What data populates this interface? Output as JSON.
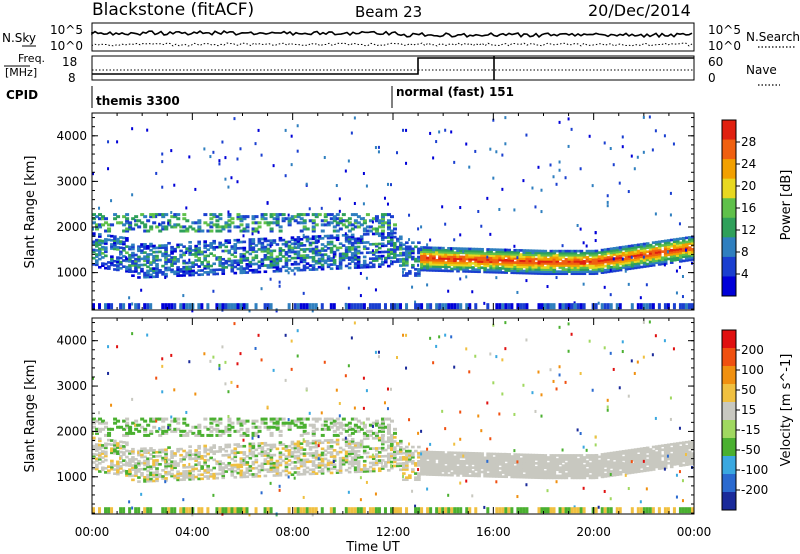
{
  "header": {
    "station": "Blackstone (fitACF)",
    "beam": "Beam 23",
    "date": "20/Dec/2014"
  },
  "strip": {
    "nsky_label": "N.Sky",
    "nsky_ticks": [
      "10^5",
      "10^0"
    ],
    "nsearch_label": "N.Search",
    "nsearch_ticks": [
      "10^5",
      "10^0"
    ],
    "freq_label": "Freq.",
    "freq_unit": "[MHz]",
    "freq_ticks": [
      "18",
      "8"
    ],
    "nave_label": "Nave",
    "nave_ticks": [
      "60",
      "0"
    ],
    "cpid_label": "CPID",
    "cpid_segments": [
      "themis 3300",
      "normal (fast) 151"
    ]
  },
  "chart_data": [
    {
      "type": "heatmap",
      "title": "",
      "xlabel": "Time UT",
      "ylabel": "Slant Range [km]",
      "xlim": [
        "00:00",
        "24:00"
      ],
      "ylim": [
        180,
        4500
      ],
      "x_ticks": [
        "00:00",
        "04:00",
        "08:00",
        "12:00",
        "16:00",
        "20:00",
        "00:00"
      ],
      "y_ticks": [
        1000,
        2000,
        3000,
        4000
      ],
      "colorbar": {
        "label": "Power [dB]",
        "ticks": [
          4,
          8,
          12,
          16,
          20,
          24,
          28
        ],
        "colors": [
          "#0000d8",
          "#1a3fd0",
          "#2f7fbf",
          "#2fa05a",
          "#5fc04a",
          "#e8d820",
          "#f2a000",
          "#f06010",
          "#e02010"
        ]
      },
      "features": [
        {
          "time_h": [
            0.0,
            12.5
          ],
          "range_km": [
            1100,
            2300
          ],
          "power_db": [
            4,
            20
          ],
          "note": "scattered band"
        },
        {
          "time_h": [
            13.0,
            24.0
          ],
          "range_km": [
            1200,
            1800
          ],
          "power_db": [
            16,
            30
          ],
          "note": "strong echo band"
        }
      ]
    },
    {
      "type": "heatmap",
      "title": "",
      "xlabel": "Time UT",
      "ylabel": "Slant Range [km]",
      "xlim": [
        "00:00",
        "24:00"
      ],
      "ylim": [
        180,
        4500
      ],
      "x_ticks": [
        "00:00",
        "04:00",
        "08:00",
        "12:00",
        "16:00",
        "20:00",
        "00:00"
      ],
      "y_ticks": [
        1000,
        2000,
        3000,
        4000
      ],
      "colorbar": {
        "label": "Velocity [m s^-1]",
        "ticks": [
          "200",
          "100",
          "50",
          "15",
          "-15",
          "-50",
          "-100",
          "-200"
        ],
        "colors": [
          "#1a2a9a",
          "#2a6ad0",
          "#3aa8e0",
          "#4ab030",
          "#a0d860",
          "#c8c8c0",
          "#f0c040",
          "#f09010",
          "#f05010",
          "#e01010"
        ]
      },
      "features": [
        {
          "time_h": [
            0.0,
            24.0
          ],
          "range_km": [
            900,
            2400
          ],
          "velocity_ms": [
            -15,
            15
          ],
          "note": "ground scatter"
        }
      ]
    }
  ]
}
